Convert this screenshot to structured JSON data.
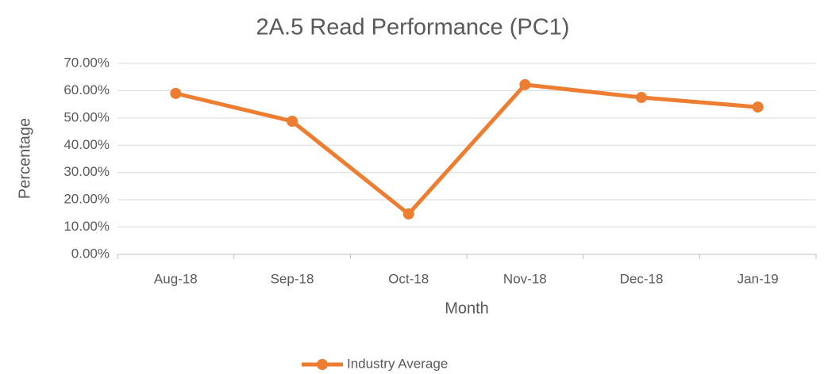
{
  "chart_data": {
    "type": "line",
    "title": "2A.5 Read Performance (PC1)",
    "x_label": "Month",
    "y_label": "Percentage",
    "categories": [
      "Aug-18",
      "Sep-18",
      "Oct-18",
      "Nov-18",
      "Dec-18",
      "Jan-19"
    ],
    "series": [
      {
        "name": "Industry Average",
        "color": "#ed7d31",
        "values": [
          59.0,
          48.8,
          14.8,
          62.2,
          57.5,
          54.0
        ]
      }
    ],
    "ylim": [
      0,
      70
    ],
    "yticks": [
      {
        "value": 0,
        "label": "0.00%"
      },
      {
        "value": 10,
        "label": "10.00%"
      },
      {
        "value": 20,
        "label": "20.00%"
      },
      {
        "value": 30,
        "label": "30.00%"
      },
      {
        "value": 40,
        "label": "40.00%"
      },
      {
        "value": 50,
        "label": "50.00%"
      },
      {
        "value": 60,
        "label": "60.00%"
      },
      {
        "value": 70,
        "label": "70.00%"
      }
    ],
    "grid": true,
    "legend": "bottom"
  }
}
